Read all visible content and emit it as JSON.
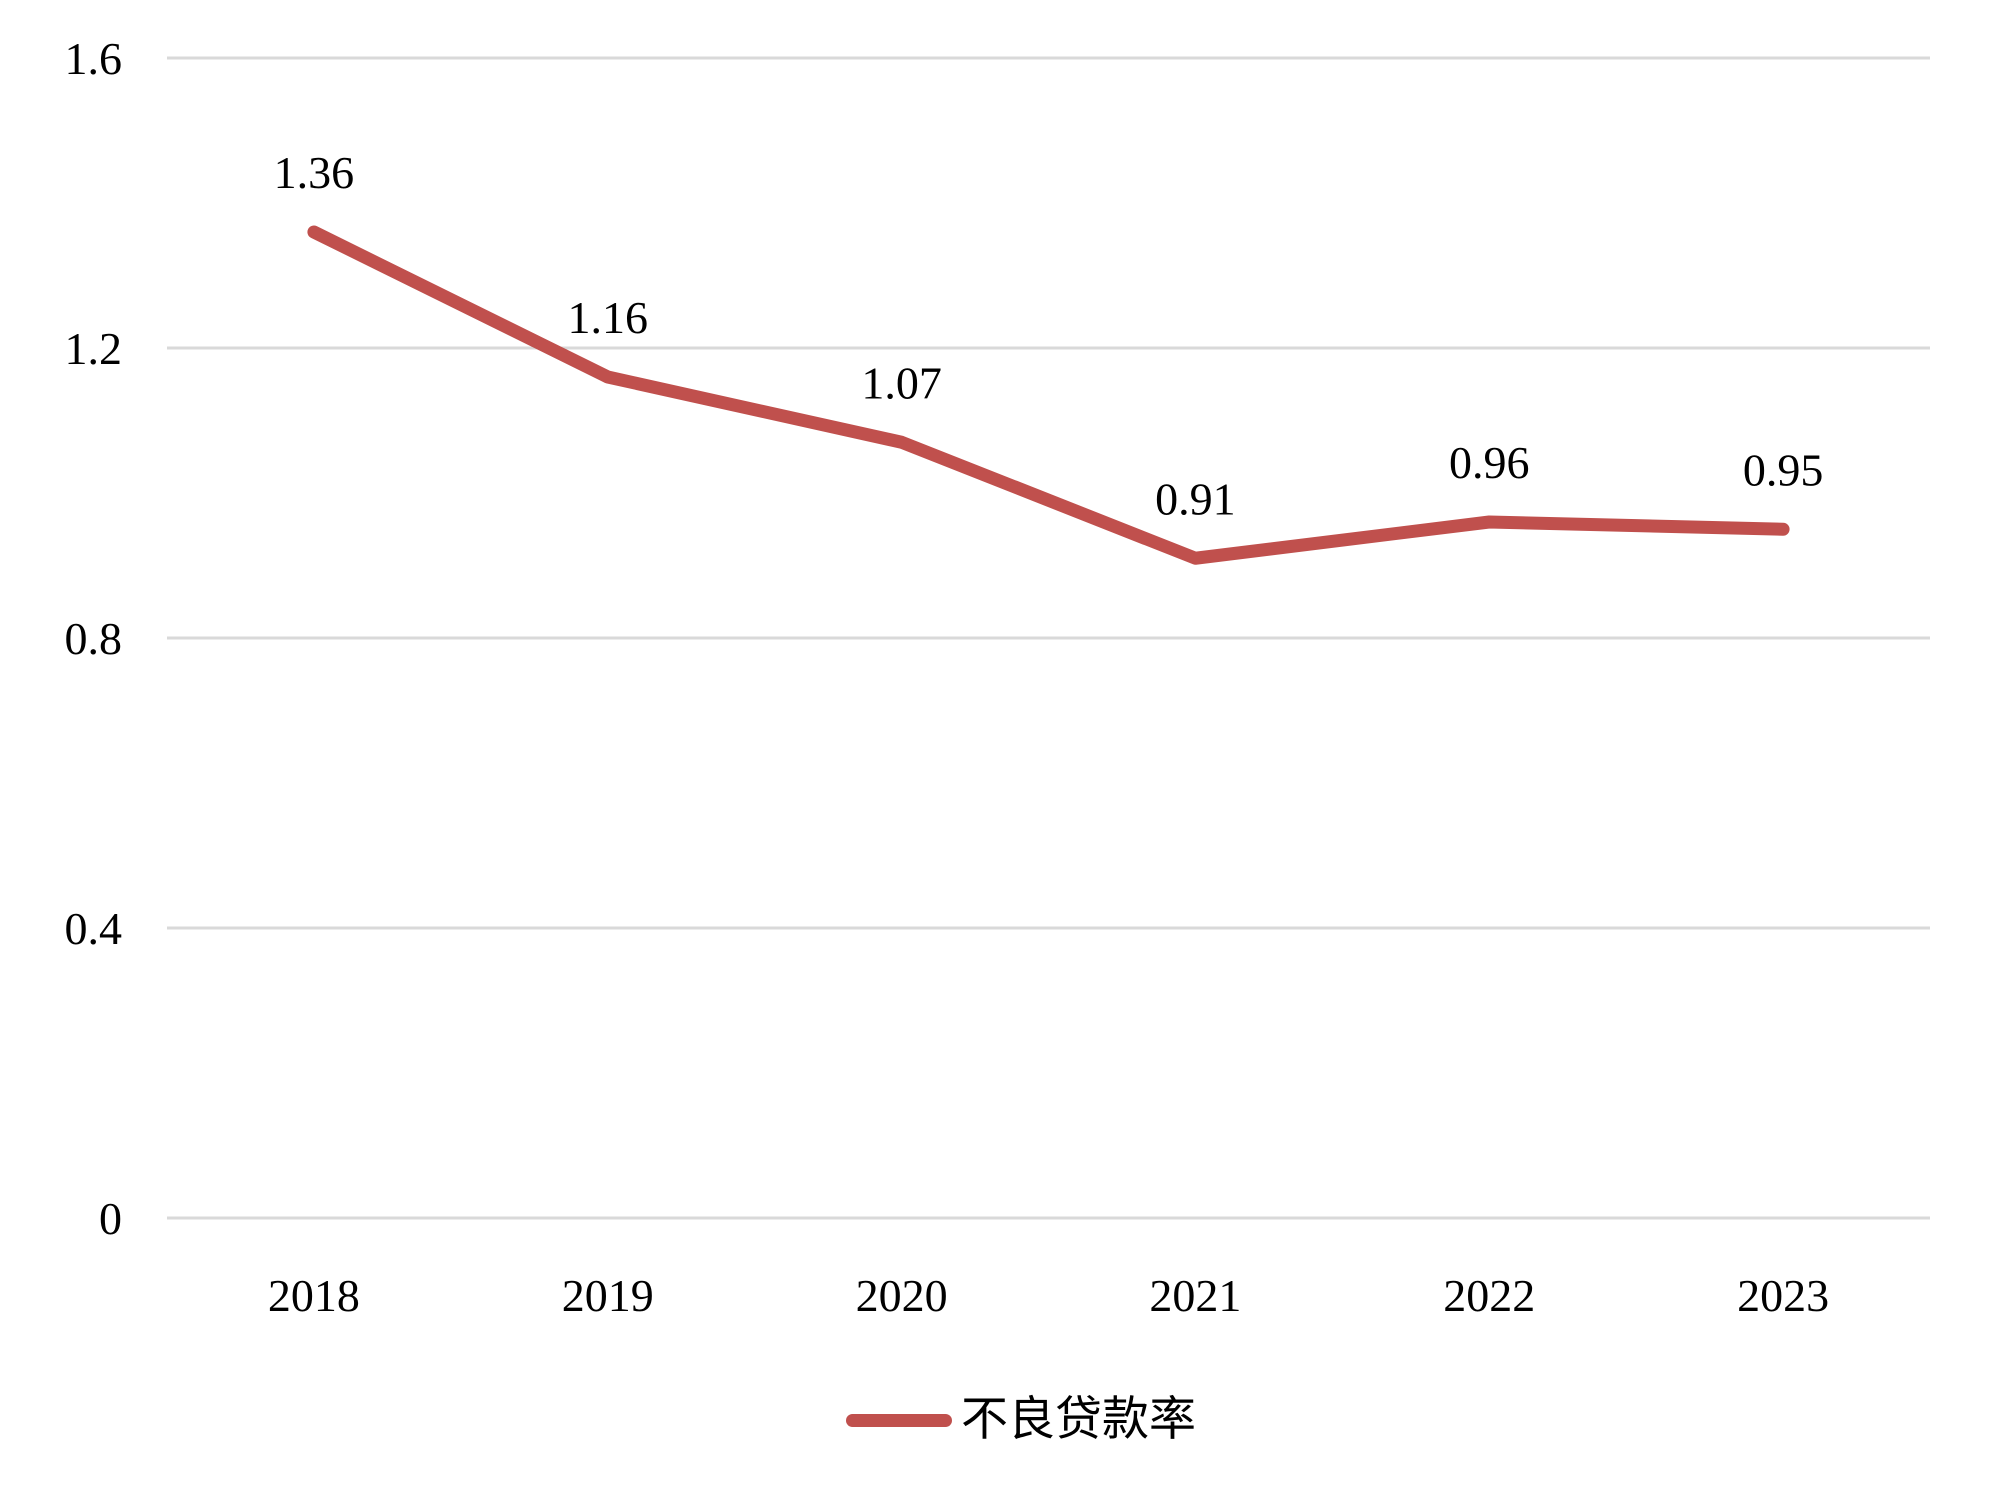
{
  "chart_data": {
    "type": "line",
    "title": "",
    "categories": [
      "2018",
      "2019",
      "2020",
      "2021",
      "2022",
      "2023"
    ],
    "series": [
      {
        "name": "不良贷款率",
        "color": "#C0504D",
        "values": [
          1.36,
          1.16,
          1.07,
          0.91,
          0.96,
          0.95
        ]
      }
    ],
    "data_labels": [
      "1.36",
      "1.16",
      "1.07",
      "0.91",
      "0.96",
      "0.95"
    ],
    "xlabel": "",
    "ylabel": "",
    "y_ticks": [
      1.6,
      1.2,
      0.8,
      0.4,
      0
    ],
    "y_tick_labels": [
      "1.6",
      "1.2",
      "0.8",
      "0.4",
      "0"
    ],
    "ylim": [
      0,
      1.6
    ],
    "grid": "horizontal-only",
    "legend_position": "bottom-center",
    "colors": {
      "line": "#C0504D",
      "gridline": "#D9D9D9",
      "text": "#000000",
      "background": "#FFFFFF"
    }
  },
  "legend": {
    "label": "不良贷款率"
  }
}
